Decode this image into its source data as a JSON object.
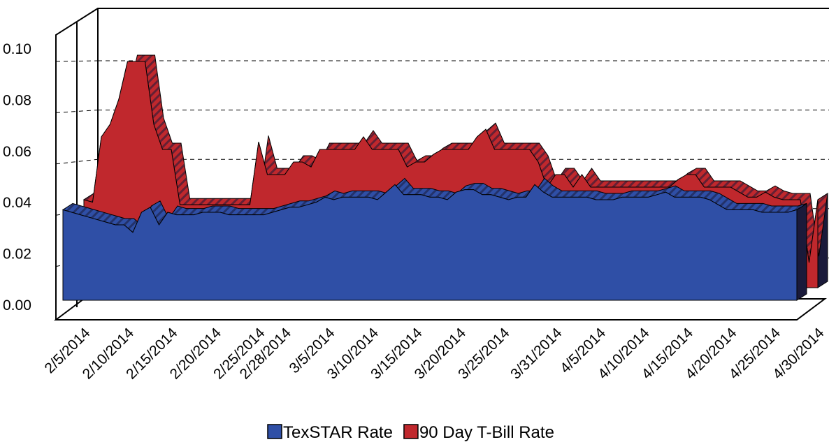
{
  "chart_data": {
    "type": "area3d",
    "categories": [
      "2/5/2014",
      null,
      null,
      null,
      null,
      "2/10/2014",
      null,
      null,
      null,
      null,
      "2/15/2014",
      null,
      null,
      null,
      null,
      "2/20/2014",
      null,
      null,
      null,
      null,
      "2/25/2014",
      null,
      null,
      "2/28/2014",
      null,
      null,
      null,
      null,
      "3/5/2014",
      null,
      null,
      null,
      null,
      "3/10/2014",
      null,
      null,
      null,
      null,
      "3/15/2014",
      null,
      null,
      null,
      null,
      "3/20/2014",
      null,
      null,
      null,
      null,
      "3/25/2014",
      null,
      null,
      null,
      null,
      null,
      "3/31/2014",
      null,
      null,
      null,
      null,
      "4/5/2014",
      null,
      null,
      null,
      null,
      "4/10/2014",
      null,
      null,
      null,
      null,
      "4/15/2014",
      null,
      null,
      null,
      null,
      "4/20/2014",
      null,
      null,
      null,
      null,
      "4/25/2014",
      null,
      null,
      null,
      null,
      "4/30/2014"
    ],
    "series": [
      {
        "name": "TexSTAR Rate",
        "color": "#2f4fa6",
        "values": [
          0.036,
          0.035,
          0.034,
          0.033,
          0.032,
          0.031,
          0.03,
          0.03,
          0.027,
          0.035,
          0.037,
          0.03,
          0.035,
          0.034,
          0.034,
          0.034,
          0.035,
          0.035,
          0.035,
          0.034,
          0.034,
          0.034,
          0.034,
          0.034,
          0.035,
          0.036,
          0.037,
          0.037,
          0.038,
          0.039,
          0.041,
          0.04,
          0.041,
          0.041,
          0.041,
          0.041,
          0.04,
          0.043,
          0.046,
          0.042,
          0.042,
          0.042,
          0.041,
          0.041,
          0.04,
          0.043,
          0.044,
          0.044,
          0.042,
          0.042,
          0.041,
          0.04,
          0.041,
          0.041,
          0.046,
          0.043,
          0.041,
          0.041,
          0.041,
          0.041,
          0.041,
          0.04,
          0.04,
          0.04,
          0.041,
          0.041,
          0.041,
          0.041,
          0.042,
          0.043,
          0.041,
          0.041,
          0.041,
          0.041,
          0.04,
          0.038,
          0.036,
          0.036,
          0.036,
          0.036,
          0.035,
          0.035,
          0.035,
          0.035,
          0.036
        ]
      },
      {
        "name": "90 Day T-Bill Rate",
        "color": "#c0282d",
        "values": [
          0.035,
          0.034,
          0.06,
          0.065,
          0.075,
          0.09,
          0.09,
          0.09,
          0.065,
          0.055,
          0.055,
          0.033,
          0.033,
          0.033,
          0.033,
          0.033,
          0.033,
          0.033,
          0.033,
          0.033,
          0.058,
          0.045,
          0.045,
          0.045,
          0.05,
          0.05,
          0.048,
          0.055,
          0.055,
          0.055,
          0.055,
          0.055,
          0.06,
          0.055,
          0.055,
          0.055,
          0.055,
          0.048,
          0.05,
          0.05,
          0.053,
          0.055,
          0.055,
          0.055,
          0.055,
          0.06,
          0.063,
          0.055,
          0.055,
          0.055,
          0.055,
          0.055,
          0.05,
          0.04,
          0.045,
          0.045,
          0.04,
          0.045,
          0.04,
          0.04,
          0.04,
          0.04,
          0.04,
          0.04,
          0.04,
          0.04,
          0.04,
          0.04,
          0.043,
          0.045,
          0.045,
          0.04,
          0.04,
          0.04,
          0.04,
          0.038,
          0.036,
          0.036,
          0.038,
          0.036,
          0.035,
          0.035,
          0.035,
          0.01,
          0.035
        ]
      }
    ],
    "ylim": [
      0,
      0.1
    ],
    "yticks": [
      {
        "value": 0,
        "label": "0.00"
      },
      {
        "value": 0.02,
        "label": "0.02"
      },
      {
        "value": 0.04,
        "label": "0.04"
      },
      {
        "value": 0.06,
        "label": "0.06"
      },
      {
        "value": 0.08,
        "label": "0.08"
      },
      {
        "value": 0.1,
        "label": "0.10"
      }
    ],
    "grid": true,
    "legend": "bottom"
  }
}
